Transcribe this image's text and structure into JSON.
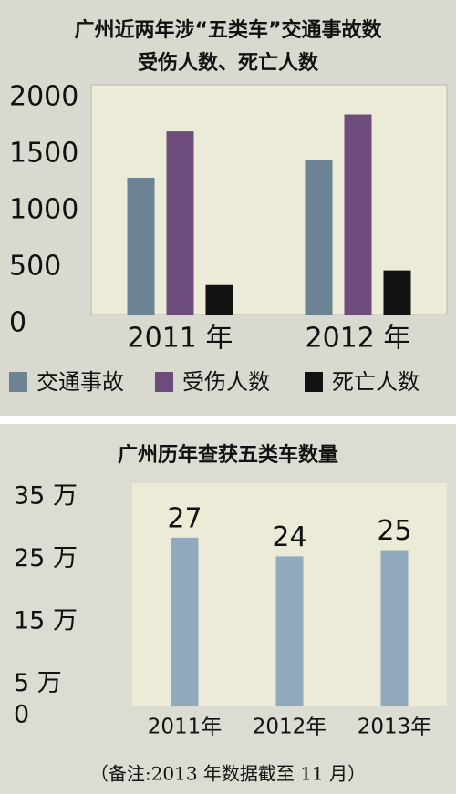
{
  "chart_data": [
    {
      "type": "bar",
      "title": "广州近两年涉“五类车”交通事故数",
      "subtitle": "受伤人数、死亡人数",
      "categories": [
        "2011 年",
        "2012 年"
      ],
      "series": [
        {
          "name": "交通事故",
          "color": "#6c8393",
          "values": [
            1210,
            1370
          ]
        },
        {
          "name": "受伤人数",
          "color": "#6d4b7d",
          "values": [
            1620,
            1770
          ]
        },
        {
          "name": "死亡人数",
          "color": "#111111",
          "values": [
            260,
            390
          ]
        }
      ],
      "ylim": [
        0,
        2000
      ],
      "yticks": [
        0,
        500,
        1000,
        1500,
        2000
      ],
      "legend": "bottom"
    },
    {
      "type": "bar",
      "title": "广州历年查获五类车数量",
      "categories": [
        "2011年",
        "2012年",
        "2013年"
      ],
      "values": [
        27,
        24,
        25
      ],
      "color": "#8fa9bd",
      "ylim": [
        0,
        35
      ],
      "yticks": [
        {
          "value": 0,
          "label": "0"
        },
        {
          "value": 5,
          "label": "5 万"
        },
        {
          "value": 15,
          "label": "15 万"
        },
        {
          "value": 25,
          "label": "25 万"
        },
        {
          "value": 35,
          "label": "35 万"
        }
      ]
    }
  ],
  "note": "（备注:2013 年数据截至 11 月）"
}
